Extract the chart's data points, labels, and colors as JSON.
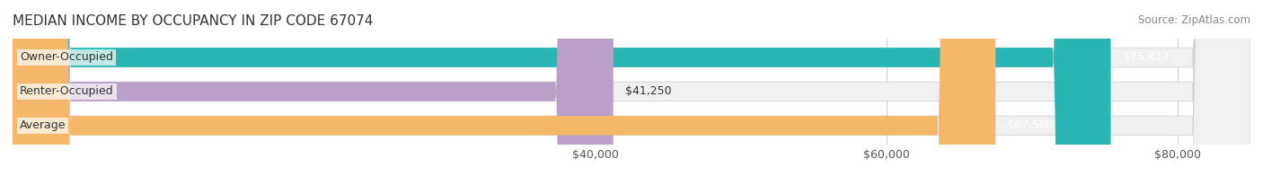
{
  "title": "MEDIAN INCOME BY OCCUPANCY IN ZIP CODE 67074",
  "source": "Source: ZipAtlas.com",
  "categories": [
    "Owner-Occupied",
    "Renter-Occupied",
    "Average"
  ],
  "values": [
    75417,
    41250,
    67500
  ],
  "labels": [
    "$75,417",
    "$41,250",
    "$67,500"
  ],
  "bar_colors": [
    "#2ab5b5",
    "#b8a0c8",
    "#f5b86a"
  ],
  "bar_bg_color": "#f0f0f0",
  "xmin": 0,
  "xmax": 85000,
  "xticks": [
    40000,
    60000,
    80000
  ],
  "xtick_labels": [
    "$40,000",
    "$60,000",
    "$80,000"
  ],
  "title_fontsize": 11,
  "source_fontsize": 8.5,
  "label_fontsize": 9,
  "tick_fontsize": 9,
  "bar_height": 0.55,
  "background_color": "#ffffff"
}
